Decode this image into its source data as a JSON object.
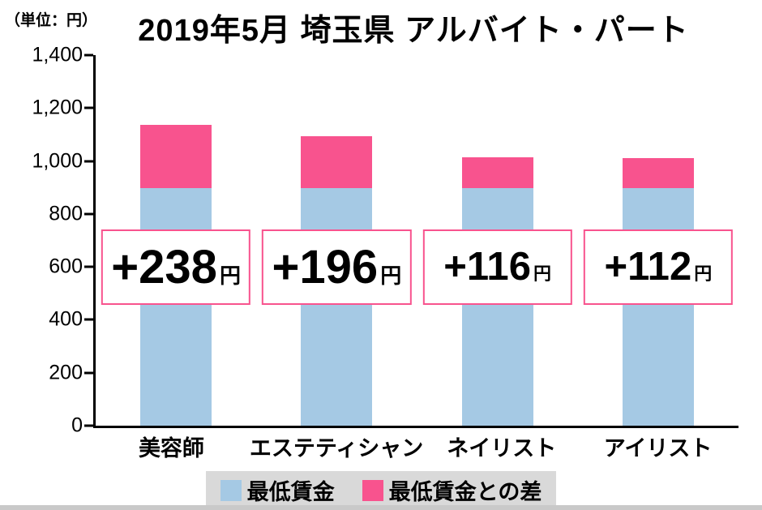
{
  "unit_label": "（単位：円）",
  "chart_data": {
    "type": "bar",
    "stacked": true,
    "title": "2019年5月 埼玉県 アルバイト・パート",
    "unit": "円",
    "categories": [
      "美容師",
      "エステティシャン",
      "ネイリスト",
      "アイリスト"
    ],
    "series": [
      {
        "name": "最低賃金",
        "color": "#a5c9e4",
        "values": [
          898,
          898,
          898,
          898
        ]
      },
      {
        "name": "最低賃金との差",
        "color": "#f8538e",
        "values": [
          238,
          196,
          116,
          112
        ]
      }
    ],
    "totals": [
      1136,
      1094,
      1014,
      1010
    ],
    "annotations": [
      {
        "text": "+238",
        "unit": "円",
        "scale": 1
      },
      {
        "text": "+196",
        "unit": "円",
        "scale": 1
      },
      {
        "text": "+116",
        "unit": "円",
        "scale": 0.85
      },
      {
        "text": "+112",
        "unit": "円",
        "scale": 0.85
      }
    ],
    "ylim": [
      0,
      1400
    ],
    "yticks": [
      {
        "value": 0,
        "label": "0"
      },
      {
        "value": 200,
        "label": "200"
      },
      {
        "value": 400,
        "label": "400"
      },
      {
        "value": 600,
        "label": "600"
      },
      {
        "value": 800,
        "label": "800"
      },
      {
        "value": 1000,
        "label": "1,000"
      },
      {
        "value": 1200,
        "label": "1,200"
      },
      {
        "value": 1400,
        "label": "1,400"
      }
    ],
    "grid": false,
    "legend_position": "bottom"
  },
  "legend": {
    "items": [
      {
        "label": "最低賃金",
        "color": "#a5c9e4"
      },
      {
        "label": "最低賃金との差",
        "color": "#f8538e"
      }
    ]
  },
  "colors": {
    "accent_pink": "#f8538e",
    "bar_blue": "#a5c9e4",
    "legend_background": "#d9d9d9"
  }
}
